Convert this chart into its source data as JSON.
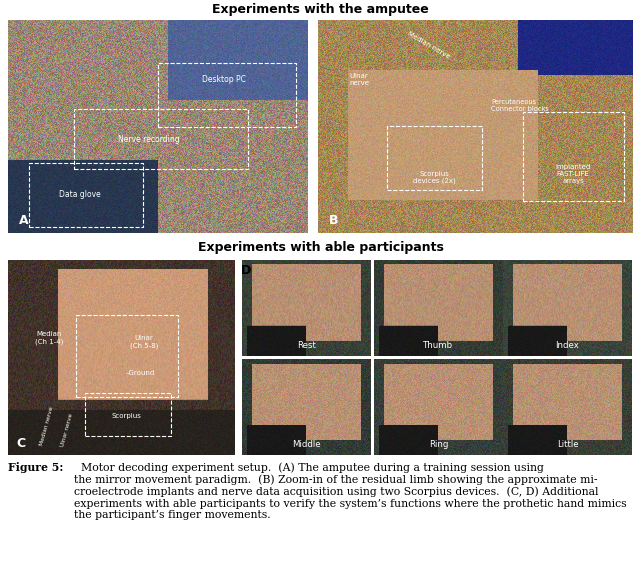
{
  "title_top": "Experiments with the amputee",
  "title_bottom": "Experiments with able participants",
  "label_A": "A",
  "label_B": "B",
  "label_C": "C",
  "label_D": "D",
  "caption_bold": "Figure 5:",
  "caption_rest": "  Motor decoding experiment setup.  (A) The amputee during a training session using\nthe mirror movement paradigm.  (B) Zoom-in of the residual limb showing the approximate mi-\ncroelectrode implants and nerve data acquisition using two Scorpius devices.  (C, D) Additional\nexperiments with able participants to verify the system’s functions where the prothetic hand mimics\nthe participant’s finger movements.",
  "bg_color": "#ffffff",
  "title_fontsize": 9.0,
  "caption_fontsize": 7.8,
  "label_fontsize": 9,
  "panel_A_color": [
    155,
    135,
    115
  ],
  "panel_B_color": [
    165,
    135,
    85
  ],
  "panel_C_color": [
    65,
    50,
    42
  ],
  "panel_D_color": [
    55,
    65,
    60
  ],
  "panel_D_labels": [
    "Rest",
    "Thumb",
    "Index",
    "Middle",
    "Ring",
    "Little"
  ]
}
